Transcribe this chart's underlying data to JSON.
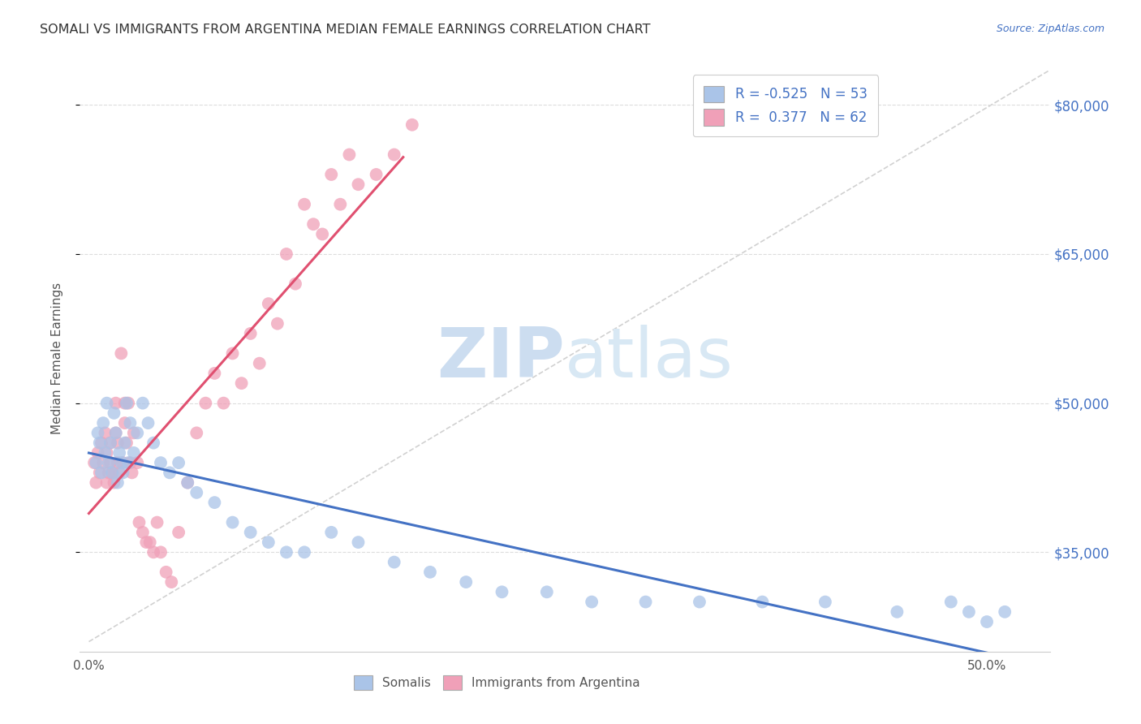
{
  "title": "SOMALI VS IMMIGRANTS FROM ARGENTINA MEDIAN FEMALE EARNINGS CORRELATION CHART",
  "source": "Source: ZipAtlas.com",
  "ylabel": "Median Female Earnings",
  "xlabel_ticks_labels": [
    "0.0%",
    "",
    "",
    "",
    "",
    "50.0%"
  ],
  "xlabel_values": [
    0.0,
    0.1,
    0.2,
    0.3,
    0.4,
    0.5
  ],
  "ylabel_ticks": [
    "$35,000",
    "$50,000",
    "$65,000",
    "$80,000"
  ],
  "ylabel_values": [
    35000,
    50000,
    65000,
    80000
  ],
  "ymin": 25000,
  "ymax": 84000,
  "xmin": -0.005,
  "xmax": 0.535,
  "legend_label1": "Somalis",
  "legend_label2": "Immigrants from Argentina",
  "R1": "-0.525",
  "N1": "53",
  "R2": "0.377",
  "N2": "62",
  "color1": "#aac4e8",
  "color2": "#f0a0b8",
  "line_color1": "#4472c4",
  "line_color2": "#e05070",
  "title_color": "#333333",
  "source_color": "#4472c4",
  "axis_label_color": "#4472c4",
  "somali_x": [
    0.004,
    0.005,
    0.006,
    0.007,
    0.008,
    0.009,
    0.01,
    0.011,
    0.012,
    0.013,
    0.014,
    0.015,
    0.016,
    0.017,
    0.018,
    0.019,
    0.02,
    0.021,
    0.022,
    0.023,
    0.025,
    0.027,
    0.03,
    0.033,
    0.036,
    0.04,
    0.045,
    0.05,
    0.055,
    0.06,
    0.07,
    0.08,
    0.09,
    0.1,
    0.11,
    0.12,
    0.135,
    0.15,
    0.17,
    0.19,
    0.21,
    0.23,
    0.255,
    0.28,
    0.31,
    0.34,
    0.375,
    0.41,
    0.45,
    0.49,
    0.51,
    0.5,
    0.48
  ],
  "somali_y": [
    44000,
    47000,
    46000,
    43000,
    48000,
    45000,
    50000,
    44000,
    46000,
    43000,
    49000,
    47000,
    42000,
    45000,
    44000,
    43000,
    46000,
    50000,
    44000,
    48000,
    45000,
    47000,
    50000,
    48000,
    46000,
    44000,
    43000,
    44000,
    42000,
    41000,
    40000,
    38000,
    37000,
    36000,
    35000,
    35000,
    37000,
    36000,
    34000,
    33000,
    32000,
    31000,
    31000,
    30000,
    30000,
    30000,
    30000,
    30000,
    29000,
    29000,
    29000,
    28000,
    30000
  ],
  "argentina_x": [
    0.003,
    0.004,
    0.005,
    0.006,
    0.007,
    0.008,
    0.009,
    0.01,
    0.01,
    0.011,
    0.012,
    0.012,
    0.013,
    0.014,
    0.015,
    0.015,
    0.016,
    0.016,
    0.017,
    0.018,
    0.019,
    0.02,
    0.02,
    0.021,
    0.022,
    0.023,
    0.024,
    0.025,
    0.027,
    0.028,
    0.03,
    0.032,
    0.034,
    0.036,
    0.038,
    0.04,
    0.043,
    0.046,
    0.05,
    0.055,
    0.06,
    0.065,
    0.07,
    0.075,
    0.08,
    0.085,
    0.09,
    0.095,
    0.1,
    0.105,
    0.11,
    0.115,
    0.12,
    0.125,
    0.13,
    0.135,
    0.14,
    0.145,
    0.15,
    0.16,
    0.17,
    0.18
  ],
  "argentina_y": [
    44000,
    42000,
    45000,
    43000,
    46000,
    44000,
    47000,
    42000,
    45000,
    43000,
    46000,
    44000,
    43000,
    42000,
    50000,
    47000,
    44000,
    46000,
    43000,
    55000,
    44000,
    50000,
    48000,
    46000,
    50000,
    44000,
    43000,
    47000,
    44000,
    38000,
    37000,
    36000,
    36000,
    35000,
    38000,
    35000,
    33000,
    32000,
    37000,
    42000,
    47000,
    50000,
    53000,
    50000,
    55000,
    52000,
    57000,
    54000,
    60000,
    58000,
    65000,
    62000,
    70000,
    68000,
    67000,
    73000,
    70000,
    75000,
    72000,
    73000,
    75000,
    78000
  ],
  "ref_line_x": [
    0.0,
    0.535
  ],
  "ref_line_y": [
    26000,
    83500
  ]
}
